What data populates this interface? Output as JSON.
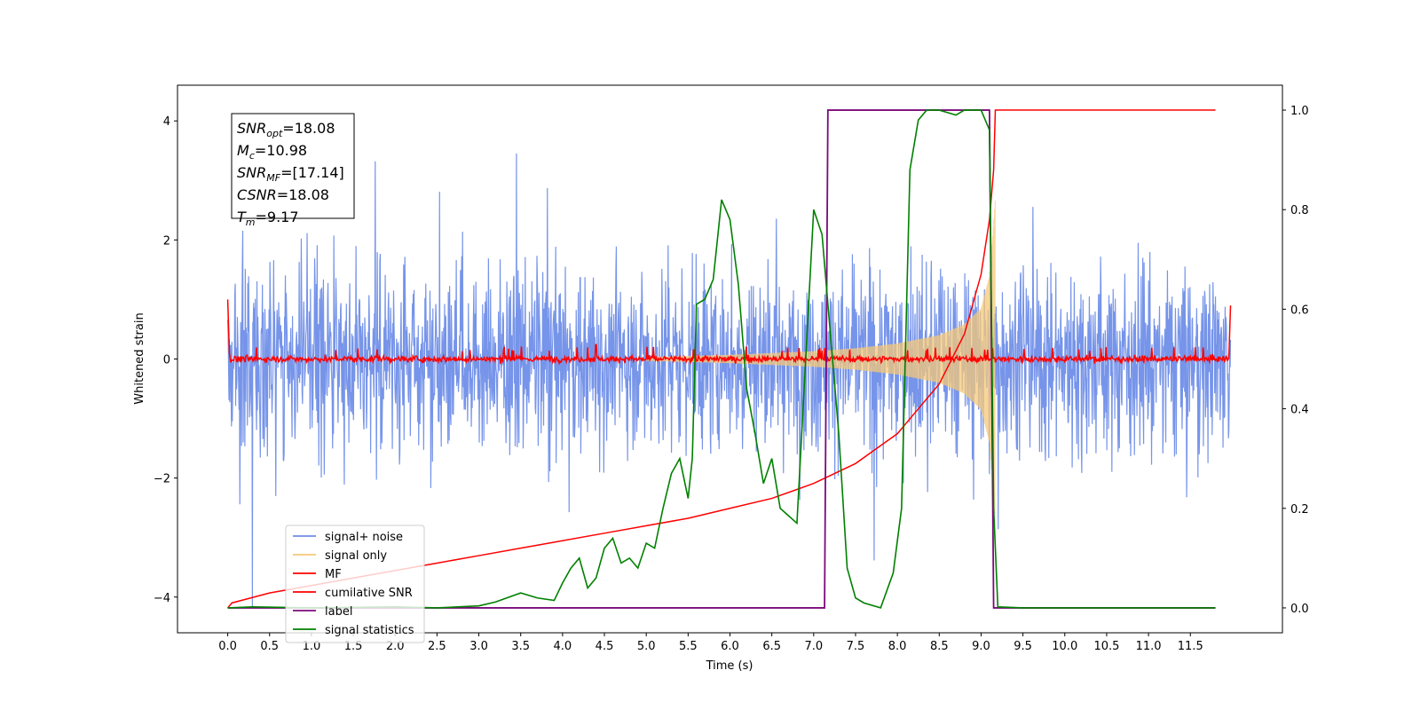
{
  "chart_data": {
    "type": "line",
    "xlabel": "Time (s)",
    "ylabel_left": "Whitened strain",
    "ylabel_right": "",
    "xlim": [
      -0.6,
      12.6
    ],
    "ylim_left": [
      -4.6,
      4.6
    ],
    "ylim_right": [
      -0.05,
      1.05
    ],
    "x_ticks": [
      0.0,
      0.5,
      1.0,
      1.5,
      2.0,
      2.5,
      3.0,
      3.5,
      4.0,
      4.5,
      5.0,
      5.5,
      6.0,
      6.5,
      7.0,
      7.5,
      8.0,
      8.5,
      9.0,
      9.5,
      10.0,
      10.5,
      11.0,
      11.5
    ],
    "x_tick_labels": [
      "0.0",
      "0.5",
      "1.0",
      "1.5",
      "2.0",
      "2.5",
      "3.0",
      "3.5",
      "4.0",
      "4.5",
      "5.0",
      "5.5",
      "6.0",
      "6.5",
      "7.0",
      "7.5",
      "8.0",
      "8.5",
      "9.0",
      "9.5",
      "10.0",
      "10.5",
      "11.0",
      "11.5"
    ],
    "y_ticks_left": [
      -4,
      -2,
      0,
      2,
      4
    ],
    "y_tick_labels_left": [
      "−4",
      "−2",
      "0",
      "2",
      "4"
    ],
    "y_ticks_right": [
      0.0,
      0.2,
      0.4,
      0.6,
      0.8,
      1.0
    ],
    "y_tick_labels_right": [
      "0.0",
      "0.2",
      "0.4",
      "0.6",
      "0.8",
      "1.0"
    ],
    "grid": false,
    "legend_placement": "lower-left",
    "series": [
      {
        "name": "signal+ noise",
        "axis": "left",
        "color": "#6f8ee8",
        "description": "whitened strain, noise-dominated, amplitude roughly between -4 and 4 over 0 to 12 s"
      },
      {
        "name": "signal only",
        "axis": "left",
        "color": "#f5c878",
        "envelope": {
          "x": [
            5.0,
            5.5,
            6.0,
            6.5,
            7.0,
            7.5,
            8.0,
            8.5,
            8.8,
            9.0,
            9.1,
            9.17
          ],
          "amplitude": [
            0.03,
            0.05,
            0.07,
            0.1,
            0.13,
            0.18,
            0.26,
            0.4,
            0.58,
            0.85,
            1.4,
            2.7
          ]
        }
      },
      {
        "name": "MF",
        "axis": "left",
        "color": "#ff0000",
        "description": "matched-filter output near 0 with small fluctuations, spikes to 1.0 at t=0 and 0.9 at t=12"
      },
      {
        "name": "cumilative SNR",
        "axis": "right",
        "color": "#ff0000",
        "x": [
          0.0,
          0.05,
          0.5,
          1.0,
          1.5,
          2.0,
          2.5,
          3.0,
          3.5,
          4.0,
          4.5,
          5.0,
          5.5,
          6.0,
          6.5,
          7.0,
          7.5,
          8.0,
          8.5,
          8.8,
          9.0,
          9.1,
          9.15,
          9.17,
          11.8
        ],
        "y": [
          0.0,
          0.01,
          0.03,
          0.045,
          0.06,
          0.075,
          0.09,
          0.105,
          0.12,
          0.135,
          0.15,
          0.165,
          0.18,
          0.2,
          0.22,
          0.25,
          0.29,
          0.35,
          0.45,
          0.55,
          0.67,
          0.78,
          0.88,
          1.0,
          1.0
        ]
      },
      {
        "name": "label",
        "axis": "right",
        "color": "#7b0a7b",
        "x": [
          0.0,
          7.13,
          7.17,
          9.1,
          9.15,
          11.8
        ],
        "y": [
          0.0,
          0.0,
          1.0,
          1.0,
          0.0,
          0.0
        ]
      },
      {
        "name": "signal statistics",
        "axis": "right",
        "color": "#008000",
        "x": [
          0.0,
          0.3,
          1.0,
          2.0,
          2.5,
          3.0,
          3.2,
          3.5,
          3.7,
          3.9,
          4.0,
          4.1,
          4.2,
          4.3,
          4.4,
          4.5,
          4.6,
          4.7,
          4.8,
          4.9,
          5.0,
          5.1,
          5.2,
          5.3,
          5.4,
          5.5,
          5.55,
          5.6,
          5.7,
          5.8,
          5.9,
          5.95,
          6.0,
          6.1,
          6.2,
          6.3,
          6.4,
          6.5,
          6.6,
          6.8,
          7.0,
          7.1,
          7.2,
          7.3,
          7.4,
          7.5,
          7.6,
          7.8,
          7.95,
          8.05,
          8.15,
          8.25,
          8.35,
          8.5,
          8.7,
          8.8,
          9.0,
          9.1,
          9.15,
          9.2,
          9.5,
          10.0,
          11.0,
          11.8
        ],
        "y": [
          0.0,
          0.002,
          0.0,
          0.002,
          0.0,
          0.004,
          0.012,
          0.03,
          0.02,
          0.015,
          0.05,
          0.08,
          0.1,
          0.04,
          0.06,
          0.12,
          0.14,
          0.09,
          0.1,
          0.08,
          0.13,
          0.12,
          0.2,
          0.27,
          0.3,
          0.22,
          0.3,
          0.61,
          0.62,
          0.66,
          0.82,
          0.8,
          0.78,
          0.65,
          0.44,
          0.35,
          0.25,
          0.3,
          0.2,
          0.17,
          0.8,
          0.75,
          0.55,
          0.35,
          0.08,
          0.02,
          0.01,
          0.0,
          0.07,
          0.2,
          0.88,
          0.98,
          1.0,
          1.0,
          0.99,
          1.0,
          1.0,
          0.96,
          0.2,
          0.002,
          0.0,
          0.0,
          0.0,
          0.0
        ]
      }
    ],
    "annotation": {
      "lines": [
        {
          "var": "SNR",
          "sub": "opt",
          "value": "=18.08"
        },
        {
          "var": "M",
          "sub": "c",
          "value": "=10.98"
        },
        {
          "var": "SNR",
          "sub": "MF",
          "value": "=[17.14]"
        },
        {
          "var": "CSNR",
          "sub": "",
          "value": "=18.08"
        },
        {
          "var": "T",
          "sub": "m",
          "value": "=9.17"
        }
      ]
    }
  }
}
